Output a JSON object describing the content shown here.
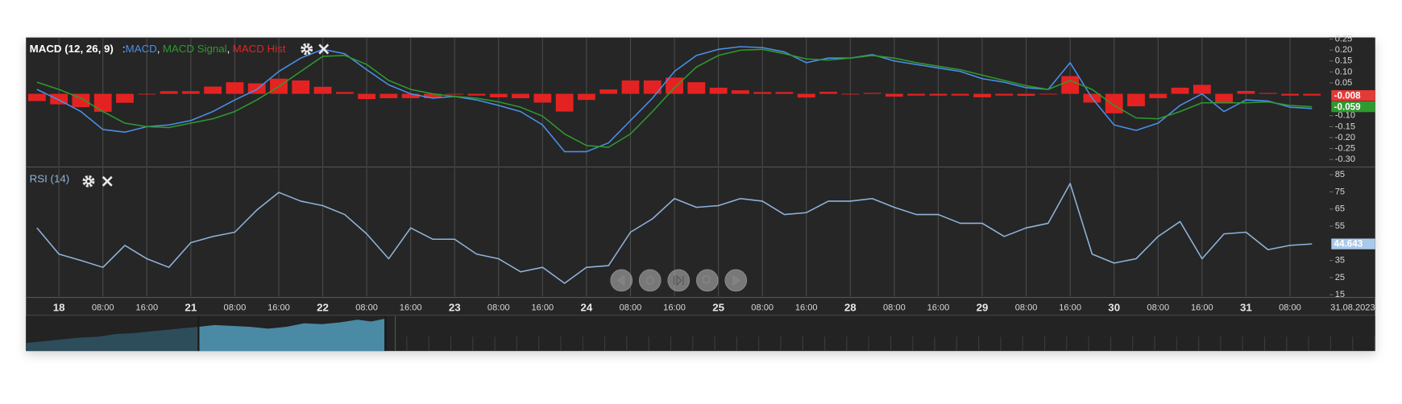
{
  "chart_data": [
    {
      "type": "line",
      "title": "MACD (12, 26, 9)",
      "legend_prefix": ":",
      "separator": ",",
      "xlim": [
        -0.5,
        58.8
      ],
      "ylim": [
        -0.33,
        0.257
      ],
      "yticks": [
        0.25,
        {
          "value": 0.2,
          "label": "0.20"
        },
        0.15,
        {
          "value": 0.1,
          "label": "0.10"
        },
        0.05,
        {
          "value": -0.1,
          "label": "-0.10"
        },
        -0.15,
        {
          "value": -0.2,
          "label": "-0.20"
        },
        -0.25,
        {
          "value": -0.3,
          "label": "-0.30"
        }
      ],
      "series": [
        {
          "name": "MACD",
          "color": "#4a8fe8",
          "values": [
            0.02,
            -0.028,
            -0.081,
            -0.163,
            -0.175,
            -0.15,
            -0.142,
            -0.122,
            -0.081,
            -0.028,
            0.02,
            0.102,
            0.163,
            0.203,
            0.183,
            0.11,
            0.041,
            0,
            -0.02,
            -0.012,
            -0.028,
            -0.053,
            -0.081,
            -0.142,
            -0.264,
            -0.264,
            -0.224,
            -0.122,
            -0.02,
            0.102,
            0.175,
            0.203,
            0.215,
            0.211,
            0.191,
            0.142,
            0.163,
            0.163,
            0.179,
            0.15,
            0.134,
            0.118,
            0.102,
            0.069,
            0.053,
            0.028,
            0.02,
            0.142,
            -0.02,
            -0.142,
            -0.167,
            -0.134,
            -0.053,
            0,
            -0.081,
            -0.028,
            -0.033,
            -0.061,
            -0.067
          ]
        },
        {
          "name": "MACD Signal",
          "color": "#2e9a2e",
          "values": [
            0.053,
            0.02,
            -0.02,
            -0.081,
            -0.134,
            -0.15,
            -0.154,
            -0.134,
            -0.114,
            -0.081,
            -0.028,
            0.033,
            0.102,
            0.171,
            0.175,
            0.134,
            0.061,
            0.02,
            0,
            -0.012,
            -0.02,
            -0.037,
            -0.061,
            -0.102,
            -0.183,
            -0.236,
            -0.244,
            -0.183,
            -0.081,
            0.028,
            0.122,
            0.175,
            0.199,
            0.203,
            0.183,
            0.159,
            0.154,
            0.163,
            0.175,
            0.163,
            0.142,
            0.126,
            0.11,
            0.085,
            0.061,
            0.037,
            0.02,
            0.061,
            0.02,
            -0.053,
            -0.11,
            -0.114,
            -0.081,
            -0.041,
            -0.041,
            -0.041,
            -0.037,
            -0.053,
            -0.059
          ]
        },
        {
          "name": "MACD Hist",
          "type": "bar",
          "color": "#e52222",
          "values": [
            -0.033,
            -0.048,
            -0.061,
            -0.082,
            -0.041,
            0,
            0.012,
            0.012,
            0.033,
            0.053,
            0.048,
            0.069,
            0.061,
            0.032,
            0.008,
            -0.024,
            -0.02,
            -0.02,
            -0.02,
            0,
            -0.008,
            -0.016,
            -0.02,
            -0.04,
            -0.081,
            -0.028,
            0.02,
            0.061,
            0.061,
            0.074,
            0.053,
            0.028,
            0.016,
            0.008,
            0.008,
            -0.017,
            0.009,
            0,
            0.004,
            -0.013,
            -0.008,
            -0.008,
            -0.008,
            -0.016,
            -0.008,
            -0.009,
            0,
            0.081,
            -0.04,
            -0.089,
            -0.057,
            -0.02,
            0.028,
            0.041,
            -0.04,
            0.013,
            0.004,
            -0.008,
            -0.008
          ]
        }
      ],
      "badges": [
        {
          "value": -0.008,
          "label": "-0.008",
          "color": "#e53935"
        },
        {
          "value": -0.059,
          "label": "-0.059",
          "color": "#2e9a2e"
        }
      ]
    },
    {
      "type": "line",
      "title": "RSI (14)",
      "title_color": "#8fb3d9",
      "xlim": [
        -0.5,
        58.8
      ],
      "ylim": [
        14,
        89
      ],
      "yticks": [
        85,
        75,
        65,
        55,
        35,
        25,
        15
      ],
      "xticks": [
        {
          "value": 1,
          "label": "18"
        },
        {
          "value": 3,
          "label": "08:00"
        },
        {
          "value": 5,
          "label": "16:00"
        },
        {
          "value": 7,
          "label": "21"
        },
        {
          "value": 9,
          "label": "08:00"
        },
        {
          "value": 11,
          "label": "16:00"
        },
        {
          "value": 13,
          "label": "22"
        },
        {
          "value": 15,
          "label": "08:00"
        },
        {
          "value": 17,
          "label": "16:00"
        },
        {
          "value": 19,
          "label": "23"
        },
        {
          "value": 21,
          "label": "08:00"
        },
        {
          "value": 23,
          "label": "16:00"
        },
        {
          "value": 25,
          "label": "24"
        },
        {
          "value": 27,
          "label": "08:00"
        },
        {
          "value": 29,
          "label": "16:00"
        },
        {
          "value": 31,
          "label": "25"
        },
        {
          "value": 33,
          "label": "08:00"
        },
        {
          "value": 35,
          "label": "16:00"
        },
        {
          "value": 37,
          "label": "28"
        },
        {
          "value": 39,
          "label": "08:00"
        },
        {
          "value": 41,
          "label": "16:00"
        },
        {
          "value": 43,
          "label": "29"
        },
        {
          "value": 45,
          "label": "08:00"
        },
        {
          "value": 47,
          "label": "16:00"
        },
        {
          "value": 49,
          "label": "30"
        },
        {
          "value": 51,
          "label": "08:00"
        },
        {
          "value": 53,
          "label": "16:00"
        },
        {
          "value": 55,
          "label": "31"
        },
        {
          "value": 57,
          "label": "08:00"
        }
      ],
      "date_label": "31.08.2023",
      "series": [
        {
          "name": "RSI",
          "color": "#8fb3d9",
          "values": [
            54,
            38.7,
            35,
            31,
            43.8,
            36,
            31,
            45.4,
            49,
            51.5,
            64.4,
            74.7,
            69.6,
            67,
            61.8,
            50.5,
            36,
            54,
            47.4,
            47.4,
            38.7,
            36,
            28.4,
            31,
            21.7,
            31,
            32,
            51.5,
            59.3,
            71.1,
            66,
            67,
            71.1,
            69.6,
            61.8,
            62.9,
            69.6,
            69.6,
            71.1,
            66,
            61.8,
            61.8,
            56.7,
            56.7,
            49,
            54,
            56.7,
            79.9,
            38.7,
            33.5,
            36,
            49,
            57.7,
            36,
            50.5,
            51.5,
            41.3,
            43.8,
            44.643
          ]
        }
      ],
      "badges": [
        {
          "value": 44.643,
          "label": "44.643",
          "color": "#a9c9ea"
        }
      ]
    }
  ]
}
